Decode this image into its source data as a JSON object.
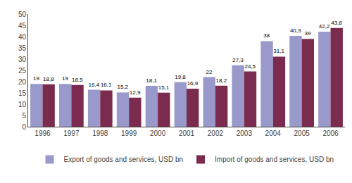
{
  "chart_data": {
    "type": "bar",
    "categories": [
      "1996",
      "1997",
      "1998",
      "1999",
      "2000",
      "2001",
      "2002",
      "2003",
      "2004",
      "2005",
      "2006"
    ],
    "series": [
      {
        "name": "Export of goods and services, USD bn",
        "color": "#9999CC",
        "values": [
          19,
          19,
          16.4,
          15.2,
          18.1,
          19.8,
          22,
          27.3,
          38,
          40.3,
          42.2
        ],
        "value_labels": [
          "19",
          "19",
          "16,4",
          "15,2",
          "18,1",
          "19,8",
          "22",
          "27,3",
          "38",
          "40,3",
          "42,2"
        ]
      },
      {
        "name": "Import of goods and services, USD bn",
        "color": "#7B2B4E",
        "values": [
          18.8,
          18.5,
          16.1,
          12.9,
          15.1,
          16.9,
          18.2,
          24.5,
          31.1,
          39,
          43.8
        ],
        "value_labels": [
          "18,8",
          "18,5",
          "16,1",
          "12,9",
          "15,1",
          "16,9",
          "18,2",
          "24,5",
          "31,1",
          "39",
          "43,8"
        ]
      }
    ],
    "ylim": [
      0,
      50
    ],
    "yticks": [
      0,
      5,
      10,
      15,
      20,
      25,
      30,
      35,
      40,
      45,
      50
    ],
    "grid": false,
    "legend": "bottom",
    "data_labels": true
  }
}
